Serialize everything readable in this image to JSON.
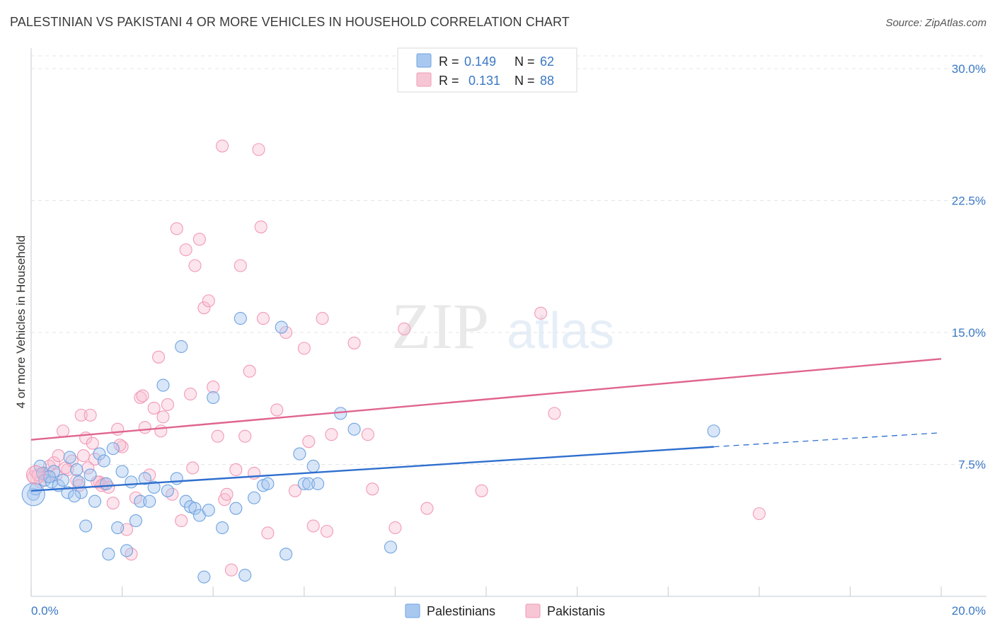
{
  "header": {
    "title": "PALESTINIAN VS PAKISTANI 4 OR MORE VEHICLES IN HOUSEHOLD CORRELATION CHART",
    "source": "Source: ZipAtlas.com"
  },
  "watermark": {
    "zip": "ZIP",
    "atlas": "atlas"
  },
  "legend": {
    "rows": [
      {
        "r_label": "R = ",
        "r_value": "0.149",
        "n_label": "N = ",
        "n_value": "62",
        "color": "#a9c8f0"
      },
      {
        "r_label": "R = ",
        "r_value": "0.131",
        "n_label": "N = ",
        "n_value": "88",
        "color": "#f7b8cb"
      }
    ]
  },
  "chart_data": {
    "type": "scatter",
    "ylabel": "4 or more Vehicles in Household",
    "xlabel": "",
    "xlim": [
      0,
      20
    ],
    "ylim": [
      0,
      31
    ],
    "x_ticks": [
      "0.0%",
      "20.0%"
    ],
    "y_ticks": [
      {
        "value": 7.5,
        "label": "7.5%"
      },
      {
        "value": 15.0,
        "label": "15.0%"
      },
      {
        "value": 22.5,
        "label": "22.5%"
      },
      {
        "value": 30.0,
        "label": "30.0%"
      }
    ],
    "grid": "dashed-horizontal",
    "series": [
      {
        "name": "Palestinians",
        "color": "#6fa3e0",
        "line_color": "#2f6fce",
        "trend": {
          "x0": 0,
          "y0": 6.0,
          "x1": 15.0,
          "y1": 8.5,
          "dash_to_x": 20,
          "dash_to_y": 9.3
        },
        "points": [
          [
            0.05,
            5.8
          ],
          [
            0.1,
            6.1
          ],
          [
            0.2,
            7.4
          ],
          [
            0.25,
            7.0
          ],
          [
            0.3,
            6.6
          ],
          [
            0.45,
            6.5
          ],
          [
            0.5,
            7.1
          ],
          [
            0.6,
            6.3
          ],
          [
            0.7,
            6.6
          ],
          [
            0.8,
            5.9
          ],
          [
            0.85,
            7.9
          ],
          [
            1.0,
            7.2
          ],
          [
            1.1,
            5.9
          ],
          [
            1.2,
            4.0
          ],
          [
            1.3,
            6.9
          ],
          [
            1.4,
            5.4
          ],
          [
            1.5,
            8.1
          ],
          [
            1.6,
            7.7
          ],
          [
            1.7,
            2.4
          ],
          [
            1.8,
            8.4
          ],
          [
            1.9,
            3.9
          ],
          [
            2.1,
            2.6
          ],
          [
            2.2,
            6.5
          ],
          [
            2.3,
            4.3
          ],
          [
            2.4,
            5.4
          ],
          [
            2.5,
            6.7
          ],
          [
            2.6,
            5.4
          ],
          [
            2.7,
            6.2
          ],
          [
            2.9,
            12.0
          ],
          [
            3.0,
            6.0
          ],
          [
            3.2,
            6.7
          ],
          [
            3.3,
            14.2
          ],
          [
            3.4,
            5.4
          ],
          [
            3.5,
            5.1
          ],
          [
            3.6,
            5.0
          ],
          [
            3.7,
            4.6
          ],
          [
            3.8,
            1.1
          ],
          [
            3.9,
            4.9
          ],
          [
            4.0,
            11.3
          ],
          [
            4.2,
            3.9
          ],
          [
            4.5,
            5.0
          ],
          [
            4.6,
            15.8
          ],
          [
            4.7,
            1.2
          ],
          [
            4.9,
            5.6
          ],
          [
            5.1,
            6.3
          ],
          [
            5.2,
            6.4
          ],
          [
            5.5,
            15.3
          ],
          [
            5.6,
            2.4
          ],
          [
            5.9,
            8.1
          ],
          [
            6.0,
            6.4
          ],
          [
            6.1,
            6.4
          ],
          [
            6.2,
            7.4
          ],
          [
            6.3,
            6.4
          ],
          [
            6.8,
            10.4
          ],
          [
            7.1,
            9.5
          ],
          [
            7.9,
            2.8
          ],
          [
            15.0,
            9.4
          ],
          [
            0.4,
            6.8
          ],
          [
            1.05,
            6.5
          ],
          [
            0.95,
            5.7
          ],
          [
            1.65,
            6.4
          ],
          [
            2.0,
            7.1
          ]
        ]
      },
      {
        "name": "Pakistanis",
        "color": "#f29ab6",
        "line_color": "#e0648f",
        "trend": {
          "x0": 0,
          "y0": 8.9,
          "x1": 20,
          "y1": 13.5
        },
        "points": [
          [
            0.05,
            6.8
          ],
          [
            0.1,
            7.1
          ],
          [
            0.2,
            6.5
          ],
          [
            0.3,
            7.0
          ],
          [
            0.4,
            7.4
          ],
          [
            0.5,
            7.6
          ],
          [
            0.6,
            8.0
          ],
          [
            0.7,
            9.4
          ],
          [
            0.8,
            7.2
          ],
          [
            0.9,
            7.7
          ],
          [
            1.0,
            6.6
          ],
          [
            1.1,
            10.3
          ],
          [
            1.15,
            8.0
          ],
          [
            1.2,
            9.0
          ],
          [
            1.3,
            10.3
          ],
          [
            1.35,
            8.7
          ],
          [
            1.4,
            7.8
          ],
          [
            1.5,
            6.5
          ],
          [
            1.6,
            6.4
          ],
          [
            1.7,
            6.2
          ],
          [
            1.8,
            5.3
          ],
          [
            1.9,
            9.5
          ],
          [
            2.0,
            8.5
          ],
          [
            2.1,
            3.8
          ],
          [
            2.2,
            2.4
          ],
          [
            2.3,
            5.6
          ],
          [
            2.4,
            11.3
          ],
          [
            2.45,
            11.4
          ],
          [
            2.5,
            9.6
          ],
          [
            2.6,
            6.9
          ],
          [
            2.7,
            10.7
          ],
          [
            2.8,
            13.6
          ],
          [
            2.85,
            9.4
          ],
          [
            2.9,
            10.2
          ],
          [
            3.0,
            10.9
          ],
          [
            3.1,
            5.8
          ],
          [
            3.2,
            20.9
          ],
          [
            3.3,
            4.3
          ],
          [
            3.4,
            19.7
          ],
          [
            3.5,
            11.5
          ],
          [
            3.55,
            7.3
          ],
          [
            3.6,
            18.8
          ],
          [
            3.7,
            20.3
          ],
          [
            3.8,
            16.4
          ],
          [
            3.9,
            16.8
          ],
          [
            4.0,
            11.9
          ],
          [
            4.1,
            9.1
          ],
          [
            4.2,
            25.6
          ],
          [
            4.25,
            5.5
          ],
          [
            4.3,
            5.8
          ],
          [
            4.4,
            1.5
          ],
          [
            4.5,
            7.2
          ],
          [
            4.6,
            18.8
          ],
          [
            4.7,
            9.1
          ],
          [
            4.8,
            12.8
          ],
          [
            4.9,
            7.0
          ],
          [
            5.0,
            25.4
          ],
          [
            5.05,
            21.0
          ],
          [
            5.1,
            15.8
          ],
          [
            5.2,
            3.6
          ],
          [
            5.4,
            10.6
          ],
          [
            5.6,
            15.0
          ],
          [
            5.8,
            6.0
          ],
          [
            6.0,
            14.1
          ],
          [
            6.1,
            8.8
          ],
          [
            6.2,
            4.0
          ],
          [
            6.4,
            15.8
          ],
          [
            6.5,
            3.7
          ],
          [
            6.6,
            9.2
          ],
          [
            7.1,
            14.4
          ],
          [
            7.4,
            9.2
          ],
          [
            7.5,
            6.1
          ],
          [
            8.0,
            3.9
          ],
          [
            8.2,
            15.2
          ],
          [
            8.7,
            5.0
          ],
          [
            9.9,
            6.0
          ],
          [
            11.2,
            16.1
          ],
          [
            11.5,
            10.4
          ],
          [
            16.0,
            4.7
          ],
          [
            0.15,
            6.9
          ],
          [
            0.35,
            6.8
          ],
          [
            0.55,
            6.9
          ],
          [
            0.75,
            7.3
          ],
          [
            1.25,
            7.3
          ],
          [
            1.45,
            6.5
          ],
          [
            1.55,
            6.3
          ],
          [
            1.95,
            8.6
          ],
          [
            1.05,
            6.3
          ]
        ]
      }
    ],
    "bottom_legend": [
      "Palestinians",
      "Pakistanis"
    ]
  }
}
